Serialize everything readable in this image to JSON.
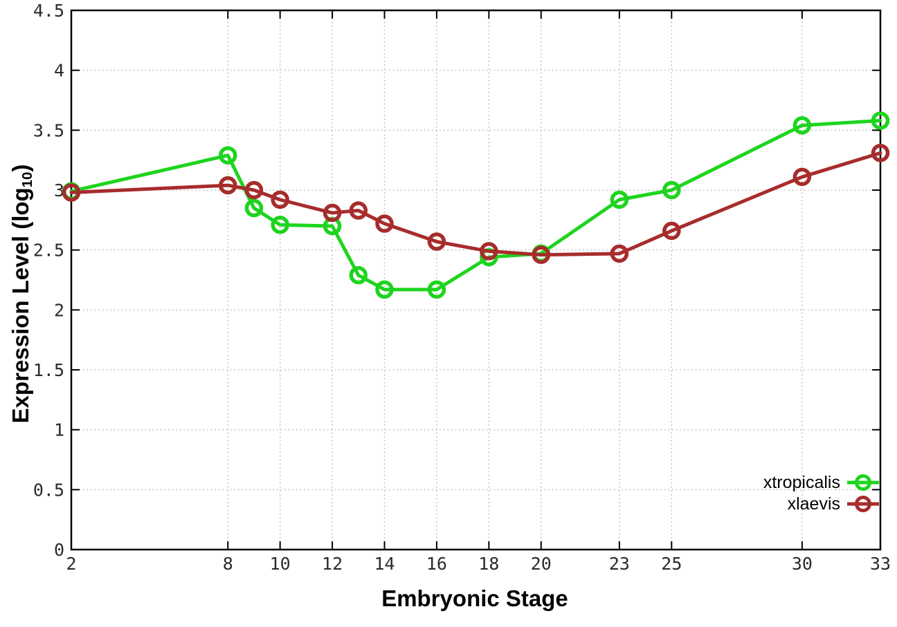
{
  "figure": {
    "background": "#ffffff"
  },
  "chart_data": {
    "type": "line",
    "title": "",
    "xlabel": "Embryonic Stage",
    "ylabel": "Expression Level (log10)",
    "ylabel_parts": {
      "prefix": "Expression Level (log",
      "sub": "10",
      "suffix": ")"
    },
    "x": [
      2,
      8,
      9,
      10,
      12,
      13,
      14,
      16,
      18,
      20,
      23,
      25,
      30,
      33
    ],
    "series": [
      {
        "name": "xtropicalis",
        "color": "#1ed41e",
        "values": [
          2.99,
          3.29,
          2.85,
          2.71,
          2.7,
          2.29,
          2.17,
          2.17,
          2.44,
          2.47,
          2.92,
          3.0,
          3.54,
          3.58
        ]
      },
      {
        "name": "xlaevis",
        "color": "#a72c2c",
        "values": [
          2.98,
          3.04,
          3.0,
          2.92,
          2.81,
          2.83,
          2.72,
          2.57,
          2.49,
          2.46,
          2.47,
          2.66,
          3.11,
          3.31
        ]
      }
    ],
    "xticks": [
      2,
      8,
      10,
      12,
      14,
      16,
      18,
      20,
      23,
      25,
      30,
      33
    ],
    "xtick_labels": [
      "2",
      "8",
      "10",
      "12",
      "14",
      "16",
      "18",
      "20",
      "23",
      "25",
      "30",
      "33"
    ],
    "yticks": [
      0,
      0.5,
      1,
      1.5,
      2,
      2.5,
      3,
      3.5,
      4,
      4.5
    ],
    "ytick_labels": [
      "0",
      "0.5",
      "1",
      "1.5",
      "2",
      "2.5",
      "3",
      "3.5",
      "4",
      "4.5"
    ],
    "xlim": [
      2,
      33
    ],
    "ylim": [
      0,
      4.5
    ],
    "grid": true,
    "grid_style": "dotted",
    "grid_color": "#bdbdbd",
    "axis_color": "#000000",
    "tick_label_color": "#2b2b2b",
    "marker": "open-circle",
    "legend_position": "bottom-right"
  }
}
